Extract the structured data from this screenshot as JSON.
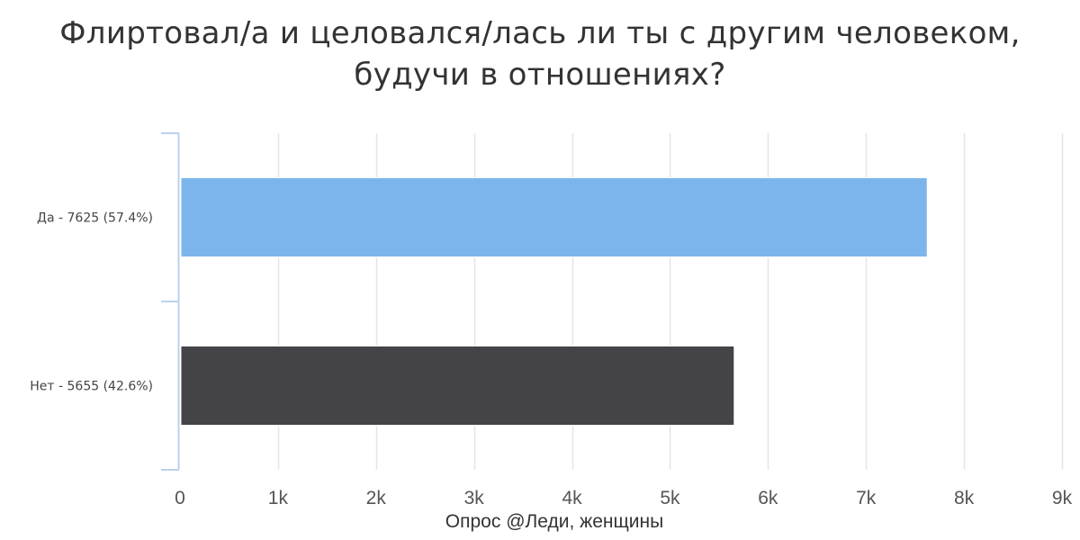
{
  "chart_data": {
    "type": "bar",
    "orientation": "horizontal",
    "title_lines": [
      "Флиртовал/а и целовался/лась ли ты с другим человеком,",
      "будучи в отношениях?"
    ],
    "xlabel": "Опрос @Леди, женщины",
    "ylabel": "",
    "categories": [
      "Да - 7625 (57.4%)",
      "Нет - 5655 (42.6%)"
    ],
    "values": [
      7625,
      5655
    ],
    "colors": [
      "#7cb5ec",
      "#434348"
    ],
    "xlim": [
      0,
      9000
    ],
    "ticks": [
      0,
      1000,
      2000,
      3000,
      4000,
      5000,
      6000,
      7000,
      8000,
      9000
    ],
    "tick_labels": [
      "0",
      "1k",
      "2k",
      "3k",
      "4k",
      "5k",
      "6k",
      "7k",
      "8k",
      "9k"
    ],
    "grid": true,
    "legend": "none"
  }
}
